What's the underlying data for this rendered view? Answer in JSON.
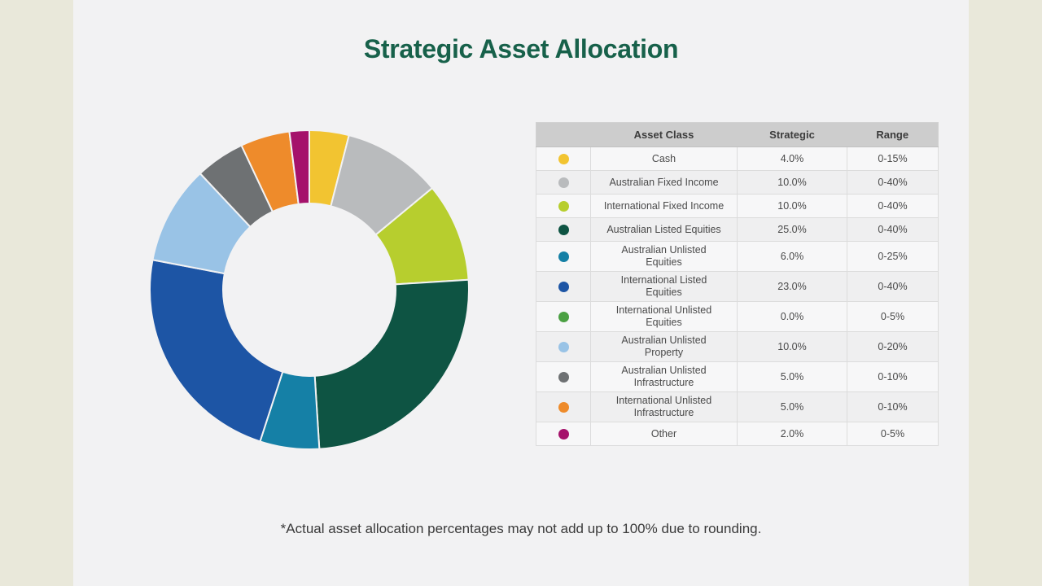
{
  "page": {
    "title": "Strategic Asset Allocation",
    "footnote": "*Actual asset allocation percentages may not add up to 100% due to rounding.",
    "title_color": "#17614a",
    "slide_background": "#f2f2f3",
    "page_margin_color": "#e9e8da"
  },
  "table": {
    "headers": [
      "Asset Class",
      "Strategic",
      "Range"
    ],
    "header_background": "#cdcdcd"
  },
  "chart_data": {
    "type": "pie",
    "subtype": "donut",
    "title": "Strategic Asset Allocation",
    "start_angle": "top",
    "direction": "clockwise",
    "inner_radius_ratio": 0.54,
    "legend_position": "table-right",
    "categories": [
      "Cash",
      "Australian Fixed Income",
      "International Fixed Income",
      "Australian Listed Equities",
      "Australian Unlisted Equities",
      "International Listed Equities",
      "International Unlisted Equities",
      "Australian Unlisted Property",
      "Australian Unlisted Infrastructure",
      "International Unlisted Infrastructure",
      "Other"
    ],
    "values": [
      4.0,
      10.0,
      10.0,
      25.0,
      6.0,
      23.0,
      0.0,
      10.0,
      5.0,
      5.0,
      2.0
    ],
    "strategic_labels": [
      "4.0%",
      "10.0%",
      "10.0%",
      "25.0%",
      "6.0%",
      "23.0%",
      "0.0%",
      "10.0%",
      "5.0%",
      "5.0%",
      "2.0%"
    ],
    "range_labels": [
      "0-15%",
      "0-40%",
      "0-40%",
      "0-40%",
      "0-25%",
      "0-40%",
      "0-5%",
      "0-20%",
      "0-10%",
      "0-10%",
      "0-5%"
    ],
    "colors": [
      "#f2c431",
      "#b9bbbd",
      "#b7ce2e",
      "#0e5443",
      "#1580a6",
      "#1d55a5",
      "#4ba043",
      "#99c3e6",
      "#6e7173",
      "#ee8b2b",
      "#a5126b"
    ]
  }
}
